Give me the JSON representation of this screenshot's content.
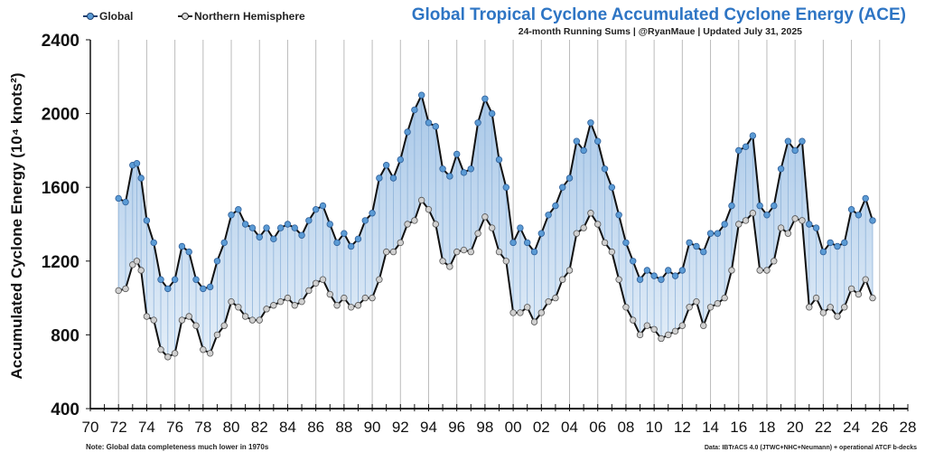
{
  "chart_data": {
    "type": "line",
    "title": "Global Tropical Cyclone Accumulated Cyclone Energy (ACE)",
    "subtitle": "24-month Running Sums | @RyanMaue | Updated July 31, 2025",
    "ylabel": "Accumulated Cyclone Energy (10⁴ knots²)",
    "xlabel": "",
    "xlim": [
      1970,
      2028
    ],
    "ylim": [
      400,
      2400
    ],
    "yticks": [
      "400",
      "800",
      "1200",
      "1600",
      "2000",
      "2400"
    ],
    "xticks": [
      "70",
      "72",
      "74",
      "76",
      "78",
      "80",
      "82",
      "84",
      "86",
      "88",
      "90",
      "92",
      "94",
      "96",
      "98",
      "00",
      "02",
      "04",
      "06",
      "08",
      "10",
      "12",
      "14",
      "16",
      "18",
      "20",
      "22",
      "24",
      "26",
      "28"
    ],
    "grid": "vertical",
    "legend": "top-left",
    "note_left": "Note: Global data completeness much lower in 1970s",
    "note_right": "Data: IBTrACS 4.0 (JTWC+NHC+Neumann) + operational ATCF b-decks",
    "colors": {
      "global": "#5b9bd5",
      "nh": "#bfbfbf",
      "fill": "#c9dcf0",
      "title": "#2e75c4"
    },
    "x": [
      1972,
      1972.5,
      1973,
      1973.3,
      1973.6,
      1974,
      1974.5,
      1975,
      1975.5,
      1976,
      1976.5,
      1977,
      1977.5,
      1978,
      1978.5,
      1979,
      1979.5,
      1980,
      1980.5,
      1981,
      1981.5,
      1982,
      1982.5,
      1983,
      1983.5,
      1984,
      1984.5,
      1985,
      1985.5,
      1986,
      1986.5,
      1987,
      1987.5,
      1988,
      1988.5,
      1989,
      1989.5,
      1990,
      1990.5,
      1991,
      1991.5,
      1992,
      1992.5,
      1993,
      1993.5,
      1994,
      1994.5,
      1995,
      1995.5,
      1996,
      1996.5,
      1997,
      1997.5,
      1998,
      1998.5,
      1999,
      1999.5,
      2000,
      2000.5,
      2001,
      2001.5,
      2002,
      2002.5,
      2003,
      2003.5,
      2004,
      2004.5,
      2005,
      2005.5,
      2006,
      2006.5,
      2007,
      2007.5,
      2008,
      2008.5,
      2009,
      2009.5,
      2010,
      2010.5,
      2011,
      2011.5,
      2012,
      2012.5,
      2013,
      2013.5,
      2014,
      2014.5,
      2015,
      2015.5,
      2016,
      2016.5,
      2017,
      2017.5,
      2018,
      2018.5,
      2019,
      2019.5,
      2020,
      2020.5,
      2021,
      2021.5,
      2022,
      2022.5,
      2023,
      2023.5,
      2024,
      2024.5,
      2025,
      2025.5
    ],
    "series": [
      {
        "name": "Global",
        "values": [
          1540,
          1520,
          1720,
          1730,
          1650,
          1420,
          1300,
          1100,
          1050,
          1100,
          1280,
          1250,
          1100,
          1050,
          1060,
          1200,
          1300,
          1450,
          1480,
          1400,
          1380,
          1330,
          1380,
          1320,
          1380,
          1400,
          1380,
          1340,
          1420,
          1480,
          1500,
          1400,
          1300,
          1350,
          1280,
          1320,
          1420,
          1460,
          1650,
          1720,
          1650,
          1750,
          1900,
          2020,
          2100,
          1950,
          1930,
          1700,
          1660,
          1780,
          1680,
          1700,
          1950,
          2080,
          2000,
          1750,
          1600,
          1300,
          1380,
          1300,
          1250,
          1350,
          1450,
          1500,
          1600,
          1650,
          1850,
          1800,
          1950,
          1850,
          1700,
          1600,
          1450,
          1300,
          1200,
          1100,
          1150,
          1120,
          1100,
          1150,
          1120,
          1150,
          1300,
          1280,
          1250,
          1350,
          1350,
          1400,
          1500,
          1800,
          1820,
          1880,
          1500,
          1450,
          1500,
          1700,
          1850,
          1800,
          1850,
          1400,
          1380,
          1250,
          1300,
          1280,
          1300,
          1480,
          1450,
          1540,
          1420
        ]
      },
      {
        "name": "Northern Hemisphere",
        "values": [
          1040,
          1050,
          1180,
          1200,
          1150,
          900,
          880,
          720,
          680,
          700,
          880,
          900,
          850,
          720,
          700,
          800,
          850,
          980,
          950,
          900,
          880,
          880,
          940,
          960,
          980,
          1000,
          960,
          980,
          1040,
          1080,
          1100,
          1020,
          960,
          1000,
          950,
          960,
          1000,
          1000,
          1100,
          1250,
          1250,
          1300,
          1400,
          1420,
          1530,
          1480,
          1400,
          1200,
          1170,
          1250,
          1260,
          1250,
          1350,
          1440,
          1380,
          1250,
          1200,
          920,
          920,
          950,
          870,
          920,
          980,
          1000,
          1100,
          1150,
          1350,
          1380,
          1460,
          1400,
          1300,
          1250,
          1100,
          950,
          880,
          800,
          850,
          830,
          780,
          800,
          820,
          850,
          950,
          980,
          850,
          950,
          970,
          1000,
          1150,
          1400,
          1420,
          1460,
          1150,
          1150,
          1200,
          1380,
          1350,
          1430,
          1420,
          950,
          1000,
          920,
          950,
          900,
          950,
          1050,
          1020,
          1100,
          1000
        ]
      }
    ]
  }
}
